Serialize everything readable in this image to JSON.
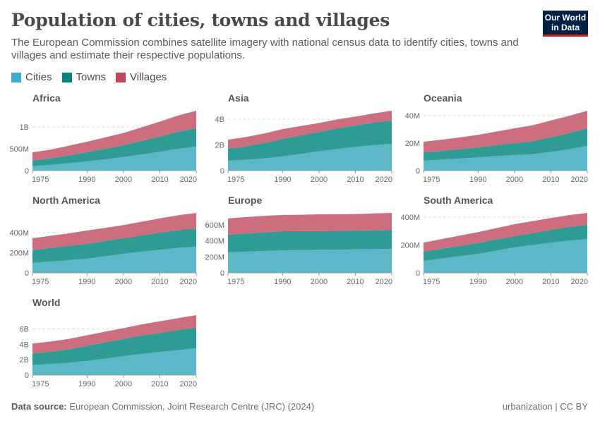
{
  "header": {
    "title": "Population of cities, towns and villages",
    "subtitle": "The European Commission combines satellite imagery with national census data to identify cities, towns and villages and estimate their respective populations.",
    "logo": "Our World in Data"
  },
  "legend": [
    {
      "label": "Cities",
      "color": "#38aecc"
    },
    {
      "label": "Towns",
      "color": "#00847e"
    },
    {
      "label": "Villages",
      "color": "#c4455c"
    }
  ],
  "footer": {
    "source_label": "Data source:",
    "source": "European Commission, Joint Research Centre (JRC) (2024)",
    "right": "urbanization | CC BY"
  },
  "chart_data": [
    {
      "type": "area",
      "stacked": true,
      "title": "Africa",
      "unit": "billion",
      "x": [
        1975,
        1980,
        1985,
        1990,
        1995,
        2000,
        2005,
        2010,
        2015,
        2020
      ],
      "xticks": [
        "1975",
        "1990",
        "2000",
        "2010",
        "2020"
      ],
      "yticks": [
        {
          "v": 0,
          "label": "0"
        },
        {
          "v": 0.5,
          "label": "500M"
        },
        {
          "v": 1,
          "label": "1B"
        }
      ],
      "ymax": 1.37,
      "series": [
        {
          "name": "Cities",
          "values": [
            0.1,
            0.13,
            0.17,
            0.21,
            0.26,
            0.31,
            0.37,
            0.43,
            0.5,
            0.55
          ]
        },
        {
          "name": "Towns",
          "values": [
            0.13,
            0.15,
            0.18,
            0.21,
            0.24,
            0.27,
            0.31,
            0.35,
            0.39,
            0.42
          ]
        },
        {
          "name": "Villages",
          "values": [
            0.19,
            0.2,
            0.22,
            0.24,
            0.26,
            0.28,
            0.31,
            0.34,
            0.37,
            0.4
          ]
        }
      ]
    },
    {
      "type": "area",
      "stacked": true,
      "title": "Asia",
      "unit": "billion",
      "x": [
        1975,
        1980,
        1985,
        1990,
        1995,
        2000,
        2005,
        2010,
        2015,
        2020
      ],
      "xticks": [
        "1975",
        "1990",
        "2000",
        "2010",
        "2020"
      ],
      "yticks": [
        {
          "v": 0,
          "label": "0"
        },
        {
          "v": 2,
          "label": "2B"
        },
        {
          "v": 4,
          "label": "4B"
        }
      ],
      "ymax": 4.66,
      "series": [
        {
          "name": "Cities",
          "values": [
            0.77,
            0.85,
            0.95,
            1.1,
            1.3,
            1.5,
            1.68,
            1.85,
            1.98,
            2.08
          ]
        },
        {
          "name": "Towns",
          "values": [
            0.93,
            1.05,
            1.2,
            1.37,
            1.45,
            1.5,
            1.6,
            1.65,
            1.75,
            1.82
          ]
        },
        {
          "name": "Villages",
          "values": [
            0.7,
            0.72,
            0.74,
            0.76,
            0.72,
            0.7,
            0.7,
            0.7,
            0.72,
            0.76
          ]
        }
      ]
    },
    {
      "type": "area",
      "stacked": true,
      "title": "Oceania",
      "unit": "million",
      "x": [
        1975,
        1980,
        1985,
        1990,
        1995,
        2000,
        2005,
        2010,
        2015,
        2020
      ],
      "xticks": [
        "1975",
        "1990",
        "2000",
        "2010",
        "2020"
      ],
      "yticks": [
        {
          "v": 0,
          "label": "0"
        },
        {
          "v": 20,
          "label": "20M"
        },
        {
          "v": 40,
          "label": "40M"
        }
      ],
      "ymax": 43.6,
      "series": [
        {
          "name": "Cities",
          "values": [
            7.2,
            8,
            8.8,
            9.6,
            10.5,
            11.3,
            12,
            13.5,
            15.5,
            18
          ]
        },
        {
          "name": "Towns",
          "values": [
            6.1,
            6.3,
            6.8,
            7.3,
            8,
            8.7,
            9.5,
            10.8,
            11.8,
            12.8
          ]
        },
        {
          "name": "Villages",
          "values": [
            7.7,
            8.2,
            8.6,
            9.1,
            9.9,
            10.8,
            11.5,
            12.2,
            12.5,
            12.8
          ]
        }
      ]
    },
    {
      "type": "area",
      "stacked": true,
      "title": "North America",
      "unit": "million",
      "x": [
        1975,
        1980,
        1985,
        1990,
        1995,
        2000,
        2005,
        2010,
        2015,
        2020
      ],
      "xticks": [
        "1975",
        "1990",
        "2000",
        "2010",
        "2020"
      ],
      "yticks": [
        {
          "v": 0,
          "label": "0"
        },
        {
          "v": 200,
          "label": "200M"
        },
        {
          "v": 400,
          "label": "400M"
        }
      ],
      "ymax": 596,
      "series": [
        {
          "name": "Cities",
          "values": [
            98,
            112,
            126,
            140,
            165,
            190,
            210,
            230,
            248,
            260
          ]
        },
        {
          "name": "Towns",
          "values": [
            127,
            135,
            142,
            148,
            152,
            155,
            163,
            170,
            176,
            182
          ]
        },
        {
          "name": "Villages",
          "values": [
            119,
            122,
            125,
            133,
            130,
            130,
            135,
            142,
            148,
            154
          ]
        }
      ]
    },
    {
      "type": "area",
      "stacked": true,
      "title": "Europe",
      "unit": "million",
      "x": [
        1975,
        1980,
        1985,
        1990,
        1995,
        2000,
        2005,
        2010,
        2015,
        2020
      ],
      "xticks": [
        "1975",
        "1990",
        "2000",
        "2010",
        "2020"
      ],
      "yticks": [
        {
          "v": 0,
          "label": "0"
        },
        {
          "v": 200,
          "label": "200M"
        },
        {
          "v": 400,
          "label": "400M"
        },
        {
          "v": 600,
          "label": "600M"
        }
      ],
      "ymax": 750,
      "series": [
        {
          "name": "Cities",
          "values": [
            256,
            265,
            274,
            282,
            286,
            288,
            290,
            293,
            297,
            300
          ]
        },
        {
          "name": "Towns",
          "values": [
            221,
            228,
            234,
            239,
            236,
            234,
            235,
            236,
            237,
            238
          ]
        },
        {
          "name": "Villages",
          "values": [
            203,
            205,
            206,
            203,
            205,
            210,
            208,
            207,
            209,
            212
          ]
        }
      ]
    },
    {
      "type": "area",
      "stacked": true,
      "title": "South America",
      "unit": "million",
      "x": [
        1975,
        1980,
        1985,
        1990,
        1995,
        2000,
        2005,
        2010,
        2015,
        2020
      ],
      "xticks": [
        "1975",
        "1990",
        "2000",
        "2010",
        "2020"
      ],
      "yticks": [
        {
          "v": 0,
          "label": "0"
        },
        {
          "v": 200,
          "label": "200M"
        },
        {
          "v": 400,
          "label": "400M"
        }
      ],
      "ymax": 431,
      "series": [
        {
          "name": "Cities",
          "values": [
            86,
            103,
            120,
            137,
            160,
            183,
            200,
            217,
            232,
            243
          ]
        },
        {
          "name": "Towns",
          "values": [
            66,
            70,
            74,
            78,
            80,
            81,
            86,
            92,
            98,
            102
          ]
        },
        {
          "name": "Villages",
          "values": [
            66,
            70,
            74,
            78,
            82,
            86,
            86,
            85,
            85,
            86
          ]
        }
      ]
    },
    {
      "type": "area",
      "stacked": true,
      "title": "World",
      "unit": "billion",
      "x": [
        1975,
        1980,
        1985,
        1990,
        1995,
        2000,
        2005,
        2010,
        2015,
        2020
      ],
      "xticks": [
        "1975",
        "1990",
        "2000",
        "2010",
        "2020"
      ],
      "yticks": [
        {
          "v": 0,
          "label": "0"
        },
        {
          "v": 2,
          "label": "2B"
        },
        {
          "v": 4,
          "label": "4B"
        },
        {
          "v": 6,
          "label": "6B"
        }
      ],
      "ymax": 7.8,
      "series": [
        {
          "name": "Cities",
          "values": [
            1.3,
            1.45,
            1.6,
            1.85,
            2.15,
            2.45,
            2.75,
            3.0,
            3.25,
            3.5
          ]
        },
        {
          "name": "Towns",
          "values": [
            1.5,
            1.6,
            1.75,
            1.95,
            2.1,
            2.25,
            2.4,
            2.5,
            2.6,
            2.7
          ]
        },
        {
          "name": "Villages",
          "values": [
            1.3,
            1.32,
            1.35,
            1.38,
            1.4,
            1.4,
            1.45,
            1.5,
            1.55,
            1.6
          ]
        }
      ]
    }
  ]
}
